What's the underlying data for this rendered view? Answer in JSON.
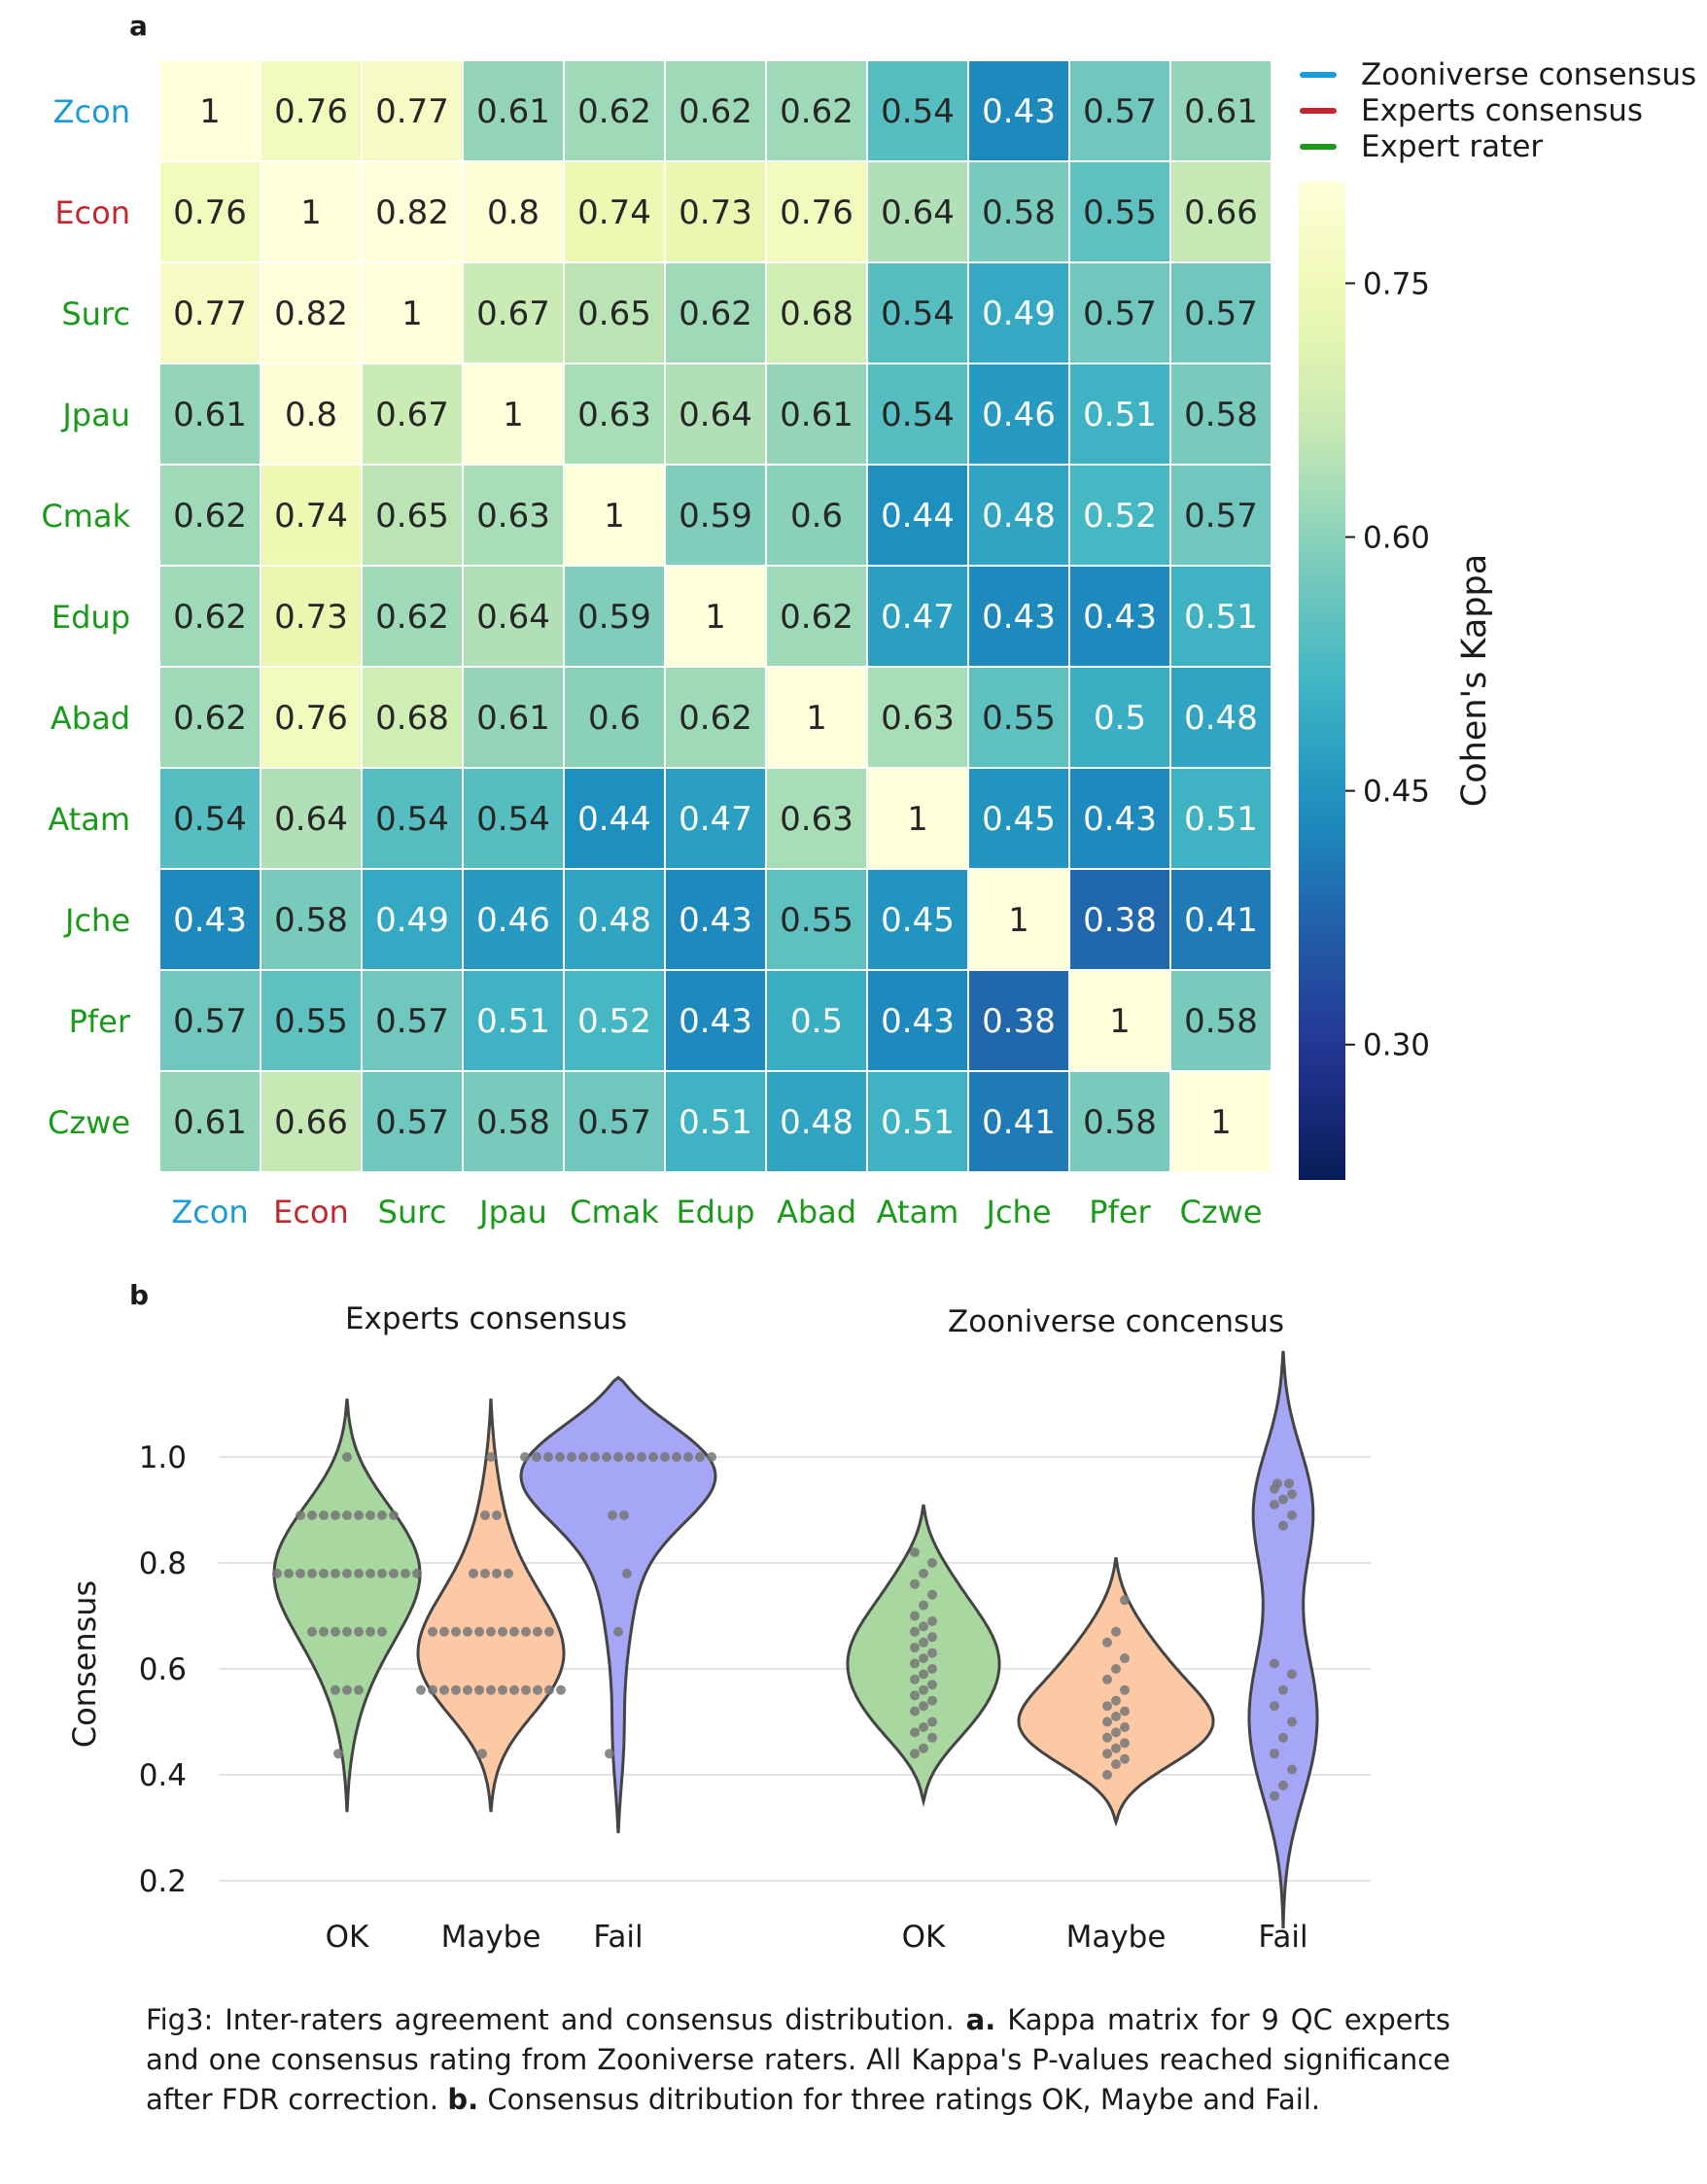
{
  "figure": {
    "panel_a_letter": "a",
    "panel_b_letter": "b",
    "caption": {
      "lead": "Fig3: Inter-raters agreement and consensus distribution. ",
      "a_bold": "a.",
      "a_text": " Kappa matrix for 9 QC experts and one consensus rating from Zooniverse raters. All Kappa's P-values reached significance after FDR correction. ",
      "b_bold": "b.",
      "b_text": " Consensus ditribution for three ratings OK, Maybe and  Fail."
    }
  },
  "colors": {
    "zooniverse": "#1a9bd7",
    "experts_consensus": "#c1272d",
    "expert_rater": "#1a9a1a",
    "violin_ok": "#a8d8a0",
    "violin_maybe": "#fcc9a4",
    "violin_fail": "#a5a6f6",
    "dot": "#777777"
  },
  "chart_data": [
    {
      "type": "heatmap",
      "legend": [
        {
          "label": "Zooniverse consensus",
          "color": "#1a9bd7"
        },
        {
          "label": "Experts consensus",
          "color": "#c1272d"
        },
        {
          "label": "Expert rater",
          "color": "#1a9a1a"
        }
      ],
      "labels": [
        "Zcon",
        "Econ",
        "Surc",
        "Jpau",
        "Cmak",
        "Edup",
        "Abad",
        "Atam",
        "Jche",
        "Pfer",
        "Czwe"
      ],
      "label_groups": [
        "zooniverse",
        "experts_consensus",
        "expert_rater",
        "expert_rater",
        "expert_rater",
        "expert_rater",
        "expert_rater",
        "expert_rater",
        "expert_rater",
        "expert_rater",
        "expert_rater"
      ],
      "values": [
        [
          "1",
          "0.76",
          "0.77",
          "0.61",
          "0.62",
          "0.62",
          "0.62",
          "0.54",
          "0.43",
          "0.57",
          "0.61"
        ],
        [
          "0.76",
          "1",
          "0.82",
          "0.8",
          "0.74",
          "0.73",
          "0.76",
          "0.64",
          "0.58",
          "0.55",
          "0.66"
        ],
        [
          "0.77",
          "0.82",
          "1",
          "0.67",
          "0.65",
          "0.62",
          "0.68",
          "0.54",
          "0.49",
          "0.57",
          "0.57"
        ],
        [
          "0.61",
          "0.8",
          "0.67",
          "1",
          "0.63",
          "0.64",
          "0.61",
          "0.54",
          "0.46",
          "0.51",
          "0.58"
        ],
        [
          "0.62",
          "0.74",
          "0.65",
          "0.63",
          "1",
          "0.59",
          "0.6",
          "0.44",
          "0.48",
          "0.52",
          "0.57"
        ],
        [
          "0.62",
          "0.73",
          "0.62",
          "0.64",
          "0.59",
          "1",
          "0.62",
          "0.47",
          "0.43",
          "0.43",
          "0.51"
        ],
        [
          "0.62",
          "0.76",
          "0.68",
          "0.61",
          "0.6",
          "0.62",
          "1",
          "0.63",
          "0.55",
          "0.5",
          "0.48"
        ],
        [
          "0.54",
          "0.64",
          "0.54",
          "0.54",
          "0.44",
          "0.47",
          "0.63",
          "1",
          "0.45",
          "0.43",
          "0.51"
        ],
        [
          "0.43",
          "0.58",
          "0.49",
          "0.46",
          "0.48",
          "0.43",
          "0.55",
          "0.45",
          "1",
          "0.38",
          "0.41"
        ],
        [
          "0.57",
          "0.55",
          "0.57",
          "0.51",
          "0.52",
          "0.43",
          "0.5",
          "0.43",
          "0.38",
          "1",
          "0.58"
        ],
        [
          "0.61",
          "0.66",
          "0.57",
          "0.58",
          "0.57",
          "0.51",
          "0.48",
          "0.51",
          "0.41",
          "0.58",
          "1"
        ]
      ],
      "colorbar": {
        "label": "Cohen's Kappa",
        "ticks": [
          "0.30",
          "0.45",
          "0.60",
          "0.75"
        ],
        "range": [
          0.22,
          0.81
        ]
      }
    },
    {
      "type": "violin",
      "ylabel": "Consensus",
      "yticks": [
        "0.2",
        "0.4",
        "0.6",
        "0.8",
        "1.0"
      ],
      "ylim": [
        0.2,
        1.16
      ],
      "groups": [
        {
          "title": "Experts consensus",
          "categories": [
            {
              "name": "OK",
              "color": "#a8d8a0",
              "min": 0.33,
              "max": 1.11,
              "mode": 0.78,
              "points": [
                0.44,
                0.56,
                0.56,
                0.56,
                0.67,
                0.67,
                0.67,
                0.67,
                0.67,
                0.67,
                0.67,
                0.78,
                0.78,
                0.78,
                0.78,
                0.78,
                0.78,
                0.78,
                0.78,
                0.78,
                0.78,
                0.78,
                0.78,
                0.78,
                0.89,
                0.89,
                0.89,
                0.89,
                0.89,
                0.89,
                0.89,
                0.89,
                0.89,
                1.0
              ]
            },
            {
              "name": "Maybe",
              "color": "#fcc9a4",
              "min": 0.33,
              "max": 1.11,
              "mode": 0.6,
              "points": [
                0.44,
                0.56,
                0.56,
                0.56,
                0.56,
                0.56,
                0.56,
                0.56,
                0.56,
                0.56,
                0.56,
                0.56,
                0.56,
                0.56,
                0.67,
                0.67,
                0.67,
                0.67,
                0.67,
                0.67,
                0.67,
                0.67,
                0.67,
                0.67,
                0.67,
                0.78,
                0.78,
                0.78,
                0.78,
                0.89,
                0.89,
                1.0
              ]
            },
            {
              "name": "Fail",
              "color": "#a5a6f6",
              "min": 0.29,
              "max": 1.15,
              "mode": 1.0,
              "points": [
                0.44,
                0.67,
                0.78,
                0.89,
                0.89,
                1.0,
                1.0,
                1.0,
                1.0,
                1.0,
                1.0,
                1.0,
                1.0,
                1.0,
                1.0,
                1.0,
                1.0,
                1.0,
                1.0,
                1.0,
                1.0,
                1.0
              ]
            }
          ]
        },
        {
          "title": "Zooniverse concensus",
          "categories": [
            {
              "name": "OK",
              "color": "#a8d8a0",
              "min": 0.35,
              "max": 0.91,
              "mode": 0.62,
              "points": [
                0.44,
                0.45,
                0.47,
                0.48,
                0.49,
                0.5,
                0.52,
                0.53,
                0.54,
                0.55,
                0.56,
                0.57,
                0.58,
                0.59,
                0.6,
                0.61,
                0.62,
                0.63,
                0.64,
                0.65,
                0.66,
                0.67,
                0.68,
                0.69,
                0.7,
                0.72,
                0.74,
                0.76,
                0.78,
                0.8,
                0.82
              ]
            },
            {
              "name": "Maybe",
              "color": "#fcc9a4",
              "min": 0.31,
              "max": 0.81,
              "mode": 0.48,
              "points": [
                0.4,
                0.42,
                0.43,
                0.44,
                0.45,
                0.46,
                0.47,
                0.48,
                0.49,
                0.5,
                0.51,
                0.52,
                0.53,
                0.54,
                0.56,
                0.58,
                0.6,
                0.62,
                0.65,
                0.67,
                0.73
              ]
            },
            {
              "name": "Fail",
              "color": "#a5a6f6",
              "min": 0.11,
              "max": 1.2,
              "mode": 0.92,
              "points": [
                0.36,
                0.38,
                0.41,
                0.44,
                0.47,
                0.5,
                0.53,
                0.56,
                0.59,
                0.61,
                0.87,
                0.89,
                0.91,
                0.92,
                0.93,
                0.94,
                0.95,
                0.95
              ]
            }
          ]
        }
      ]
    }
  ]
}
